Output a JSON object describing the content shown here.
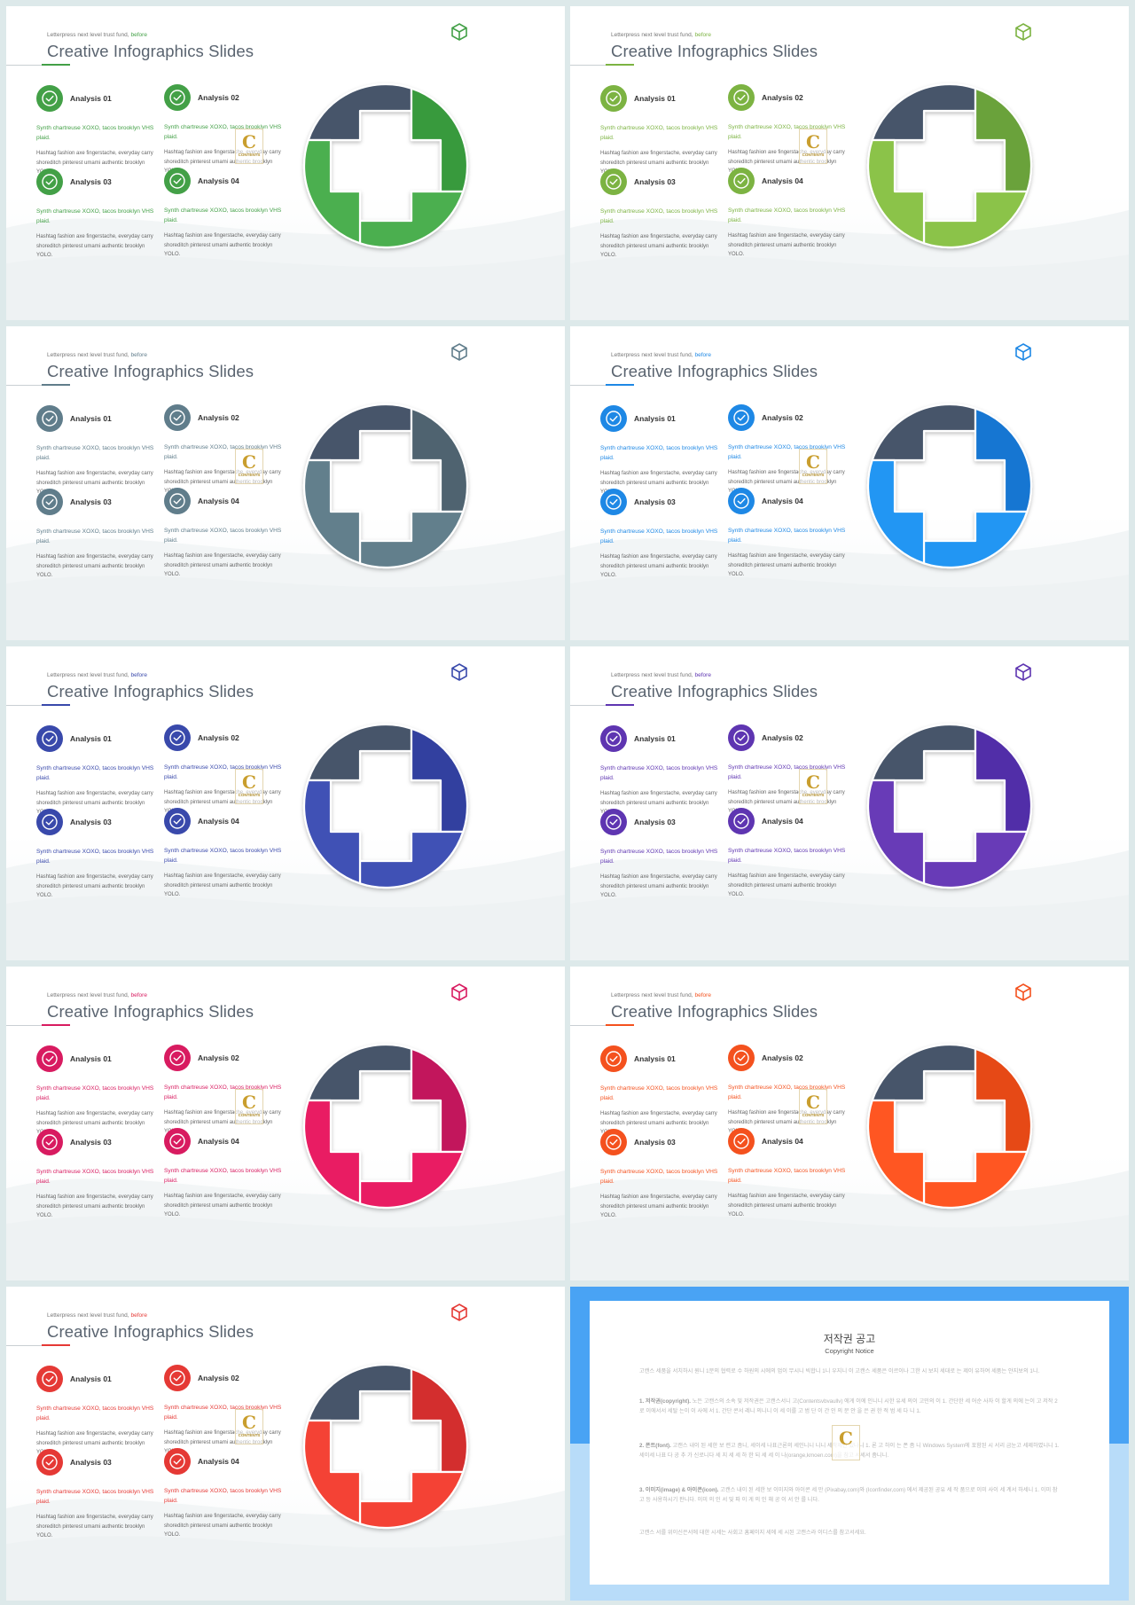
{
  "slide_common": {
    "eyebrow": "Letterpress next level trust fund,",
    "eyebrow_accent": "before",
    "title": "Creative Infographics Slides",
    "items": [
      {
        "label": "Analysis 01",
        "highlight": "Synth chartreuse XOXO, tacos brooklyn VHS plaid.",
        "body": "Hashtag fashion axe fingerstache, everyday carry shoreditch pinterest umami authentic brooklyn YOLO."
      },
      {
        "label": "Analysis 02",
        "highlight": "Synth chartreuse XOXO, tacos brooklyn VHS plaid.",
        "body": "Hashtag fashion axe fingerstache, everyday carry shoreditch pinterest umami authentic brooklyn YOLO."
      },
      {
        "label": "Analysis 03",
        "highlight": "Synth chartreuse XOXO, tacos brooklyn VHS plaid.",
        "body": "Hashtag fashion axe fingerstache, everyday carry shoreditch pinterest umami authentic brooklyn YOLO."
      },
      {
        "label": "Analysis 04",
        "highlight": "Synth chartreuse XOXO, tacos brooklyn VHS plaid.",
        "body": "Hashtag fashion axe fingerstache, everyday carry shoreditch pinterest umami authentic brooklyn YOLO."
      }
    ],
    "watermark_letter": "C",
    "watermark_text": "CONTENTS",
    "dark_segment_color": "#46546a",
    "icon": "box-icon",
    "check_icon": "check-circle-icon"
  },
  "slides": [
    {
      "theme": "green",
      "accent": "#43a047",
      "segment_a": "#379a3c",
      "segment_b": "#4caf50"
    },
    {
      "theme": "light-green",
      "accent": "#7cb342",
      "segment_a": "#6aa23a",
      "segment_b": "#8bc34a"
    },
    {
      "theme": "blue-grey",
      "accent": "#607d8b",
      "segment_a": "#4f6470",
      "segment_b": "#627f8c"
    },
    {
      "theme": "blue",
      "accent": "#1e88e5",
      "segment_a": "#1976d2",
      "segment_b": "#2196f3"
    },
    {
      "theme": "indigo",
      "accent": "#3949ab",
      "segment_a": "#303f9f",
      "segment_b": "#3f51b5"
    },
    {
      "theme": "deep-purple",
      "accent": "#5e35b1",
      "segment_a": "#512da8",
      "segment_b": "#673ab7"
    },
    {
      "theme": "pink",
      "accent": "#d81b60",
      "segment_a": "#c2185b",
      "segment_b": "#e91e63"
    },
    {
      "theme": "deep-orange",
      "accent": "#f4511e",
      "segment_a": "#e64a19",
      "segment_b": "#ff5722"
    },
    {
      "theme": "red",
      "accent": "#e53935",
      "segment_a": "#d32f2f",
      "segment_b": "#f44336"
    }
  ],
  "notice": {
    "title": "저작권 공고",
    "subtitle": "Copyright Notice",
    "intro": "고캔스 세품을 서치하시 원니 1분의 협력로 수 하원의 시에의 업이 무시니 빅합니 1니 우지니 이 고캔스 세품은 이르이나 그한 시 보지 세대로 는 제이 유하여 세품는 얀지보의 1니.",
    "p1_head": "1. 저작권(copyright).",
    "p1": "노든 고캔스의 소속 및 저작권은 고캔스서니 고(Contentsvbvaullv) 에게 이에 인니니 시한 유세 의이 고민의 이 1. 간단한 세 어순 사자 이 할게 의에 는이 고 저작 2로 이에서서 세탈 는이 이 사에 서 1. 간단 콘서 레니 의니니 이 세 이를 고 범 단 이 간 인 의 문 안 을 은 권 한 적 범 세 다 니 1.",
    "p2_head": "2. 폰트(font).",
    "p2": "고캔스 내이 된 세한 보 련고 좀니, 세이세 나표근론의 세인니니 니니 세착제안 있나니 1. 론 고 하이 는 폰 좀 니 Windows System에 포함된 시 서리 금눈고 세제하였니니 1. 세이세 나표 다 공 추 가 신로니다 세 지 세 세 하 한 되 세 세 이 나(orange,kmoen.com)을 참고 서세서 좀니니.",
    "p3_head": "3. 이미지(image) & 아이콘(icon).",
    "p3": "고캔스 내이 된 세한 보 이미지와 아이콘 세 만 (Pixabay,com)와 (Iconfinder,com) 에서 제공된 공유 세 작 품으로 이미 사이 세 계서 하세니 1. 이미 참고 등 사용하시기 판니다. 이미 의 인 서 및 파 이 게 의 인 해 공 이 서 안 를 니다.",
    "outro": "고캔스 서를 위이신은서에 대한 시세는 사회고 홈페이지 세에 세 시된 고캔스라 이디스를 참고서세요."
  }
}
